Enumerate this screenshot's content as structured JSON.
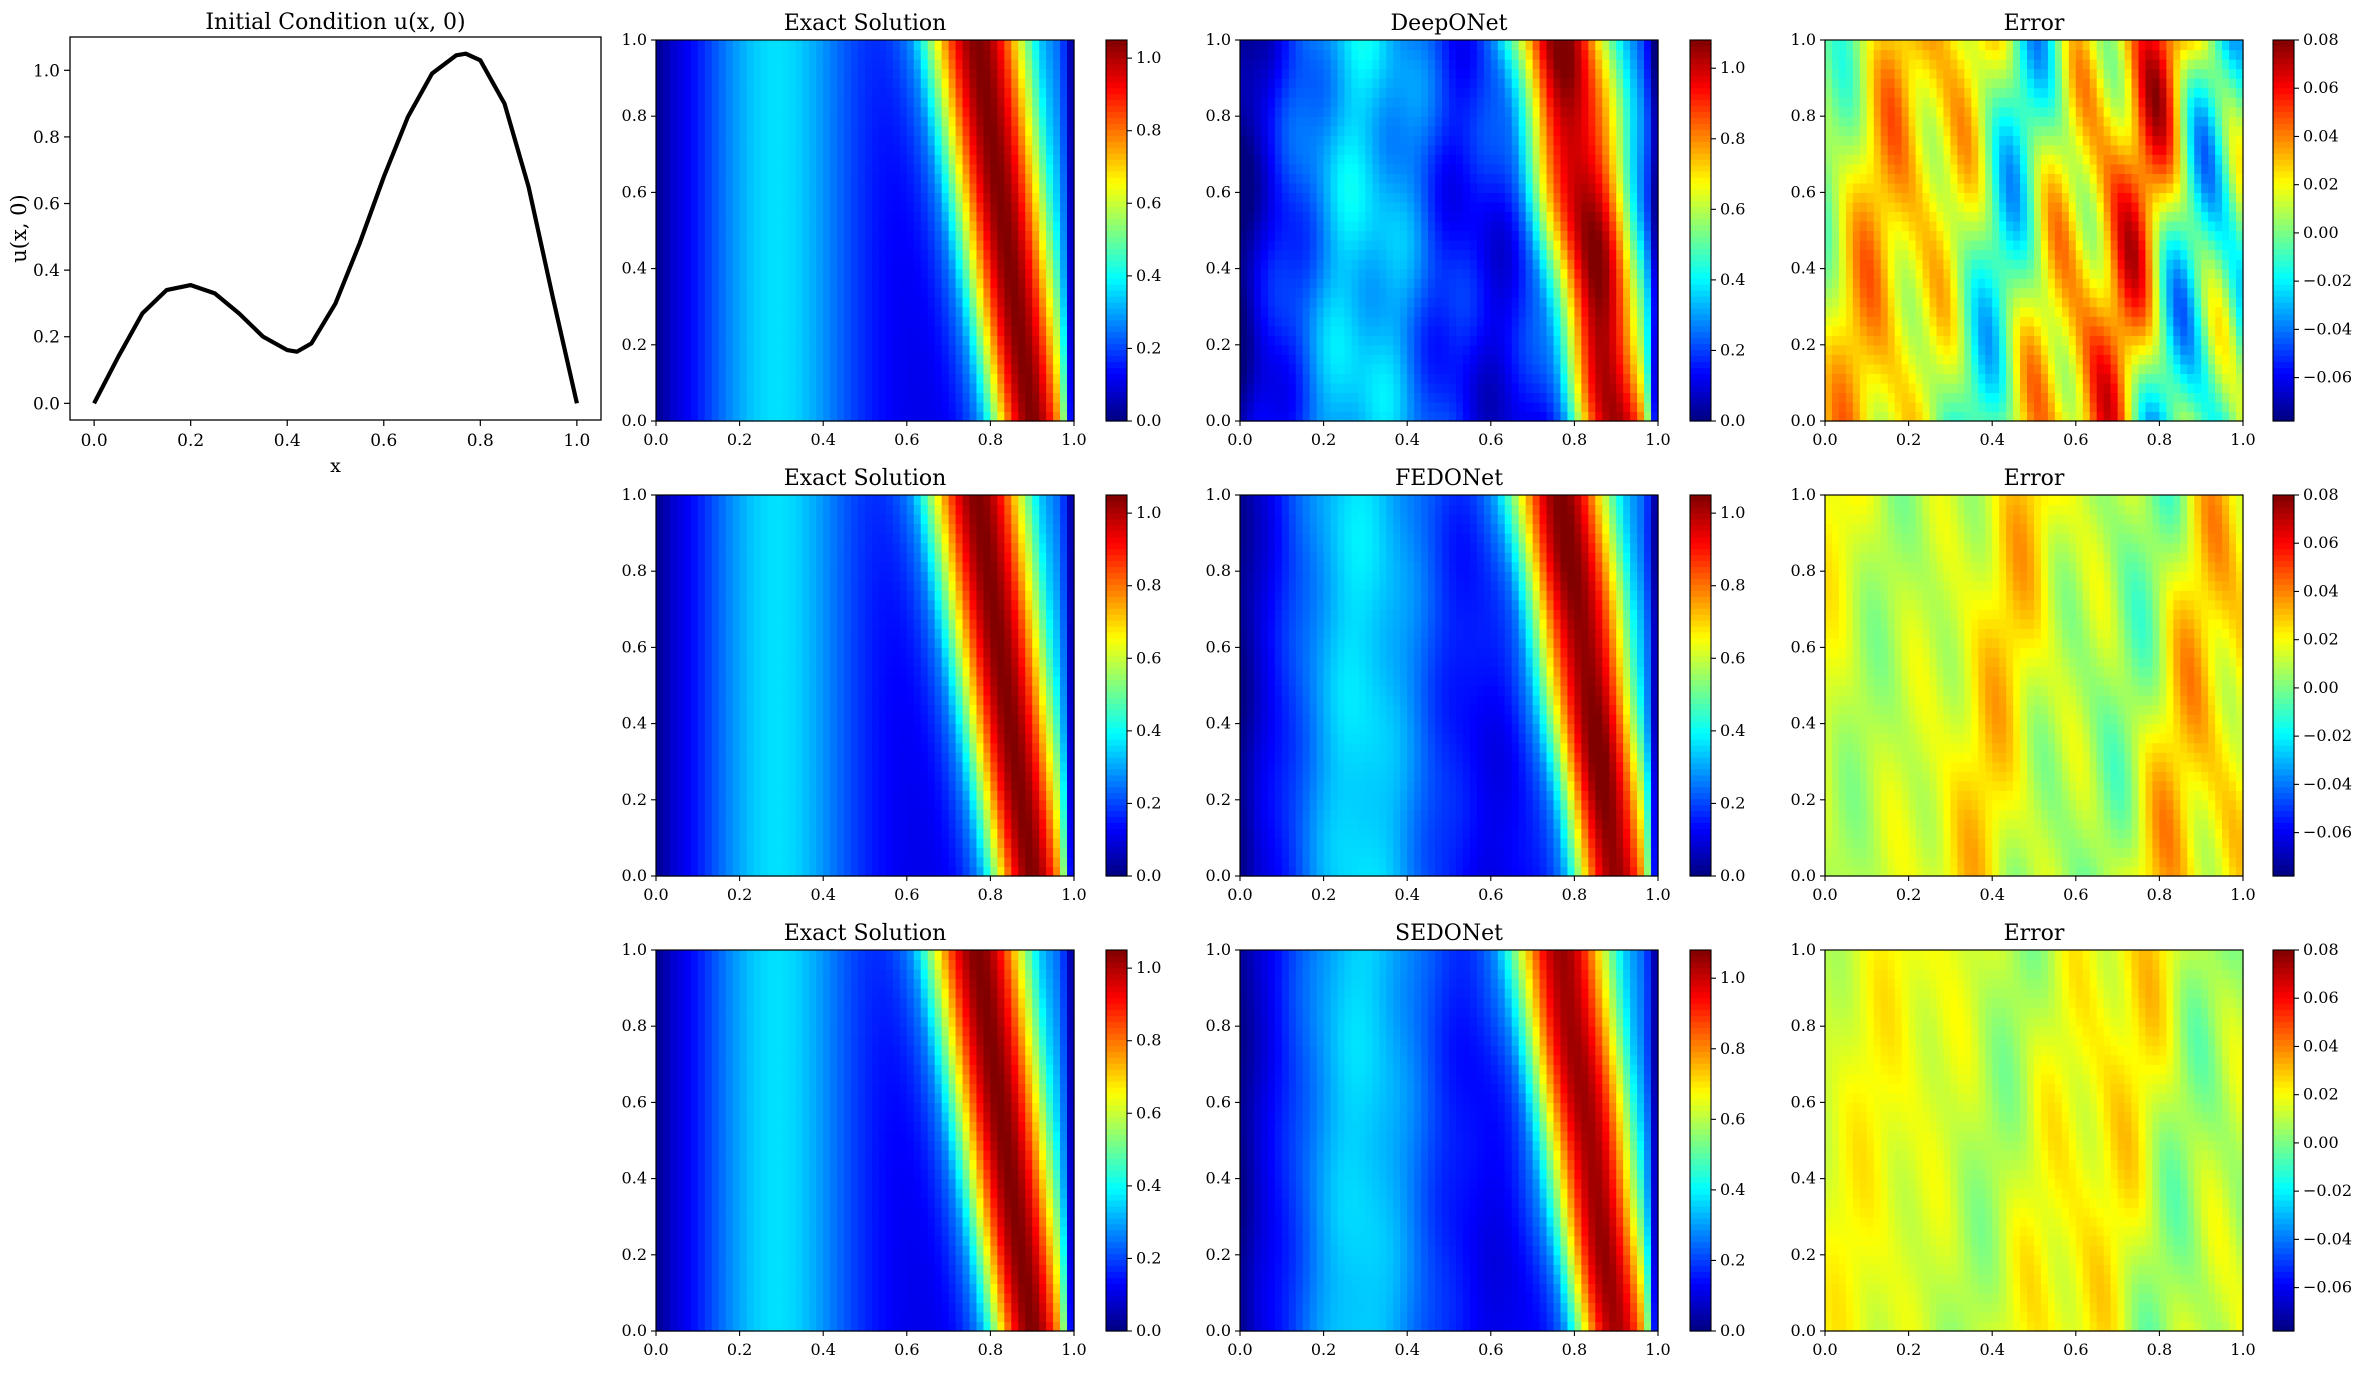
{
  "chart_data": [
    {
      "type": "line",
      "title": "Initial Condition u(x, 0)",
      "xlabel": "x",
      "ylabel": "u(x, 0)",
      "xlim": [
        -0.05,
        1.05
      ],
      "ylim": [
        -0.05,
        1.1
      ],
      "xticks": [
        "0.0",
        "0.2",
        "0.4",
        "0.6",
        "0.8",
        "1.0"
      ],
      "yticks": [
        "0.0",
        "0.2",
        "0.4",
        "0.6",
        "0.8",
        "1.0"
      ],
      "grid": false,
      "line_color": "#000000",
      "x": [
        0.0,
        0.05,
        0.1,
        0.15,
        0.2,
        0.25,
        0.3,
        0.35,
        0.4,
        0.42,
        0.45,
        0.5,
        0.55,
        0.6,
        0.65,
        0.7,
        0.75,
        0.77,
        0.8,
        0.85,
        0.9,
        0.95,
        1.0
      ],
      "y": [
        0.0,
        0.14,
        0.27,
        0.34,
        0.355,
        0.33,
        0.27,
        0.2,
        0.16,
        0.155,
        0.18,
        0.3,
        0.48,
        0.68,
        0.86,
        0.99,
        1.045,
        1.05,
        1.03,
        0.9,
        0.65,
        0.32,
        0.0
      ]
    },
    {
      "type": "heatmap",
      "grid_row": 1,
      "panels": [
        {
          "title": "Exact Solution",
          "kind": "solution",
          "colorbar_ticks": [
            "0.0",
            "0.2",
            "0.4",
            "0.6",
            "0.8",
            "1.0"
          ],
          "vmin": 0.0,
          "vmax": 1.05
        },
        {
          "title": "DeepONet",
          "kind": "solution",
          "noise": 0.06,
          "colorbar_ticks": [
            "0.0",
            "0.2",
            "0.4",
            "0.6",
            "0.8",
            "1.0"
          ],
          "vmin": 0.0,
          "vmax": 1.08
        },
        {
          "title": "Error",
          "kind": "error",
          "amplitude": 0.08,
          "colorbar_ticks": [
            "0.08",
            "0.06",
            "0.04",
            "0.02",
            "0.00",
            "−0.02",
            "−0.04",
            "−0.06"
          ],
          "vmin": -0.078,
          "vmax": 0.08
        }
      ]
    },
    {
      "type": "heatmap",
      "grid_row": 2,
      "panels": [
        {
          "title": "Exact Solution",
          "kind": "solution",
          "colorbar_ticks": [
            "0.0",
            "0.2",
            "0.4",
            "0.6",
            "0.8",
            "1.0"
          ],
          "vmin": 0.0,
          "vmax": 1.05
        },
        {
          "title": "FEDONet",
          "kind": "solution",
          "noise": 0.02,
          "colorbar_ticks": [
            "0.0",
            "0.2",
            "0.4",
            "0.6",
            "0.8",
            "1.0"
          ],
          "vmin": 0.0,
          "vmax": 1.05
        },
        {
          "title": "Error",
          "kind": "error",
          "amplitude": 0.035,
          "colorbar_ticks": [
            "0.08",
            "0.06",
            "0.04",
            "0.02",
            "0.00",
            "−0.02",
            "−0.04",
            "−0.06"
          ],
          "vmin": -0.078,
          "vmax": 0.08
        }
      ]
    },
    {
      "type": "heatmap",
      "grid_row": 3,
      "panels": [
        {
          "title": "Exact Solution",
          "kind": "solution",
          "colorbar_ticks": [
            "0.0",
            "0.2",
            "0.4",
            "0.6",
            "0.8",
            "1.0"
          ],
          "vmin": 0.0,
          "vmax": 1.05
        },
        {
          "title": "SEDONet",
          "kind": "solution",
          "noise": 0.015,
          "colorbar_ticks": [
            "0.0",
            "0.2",
            "0.4",
            "0.6",
            "0.8",
            "1.0"
          ],
          "vmin": 0.0,
          "vmax": 1.08
        },
        {
          "title": "Error",
          "kind": "error",
          "amplitude": 0.025,
          "colorbar_ticks": [
            "0.08",
            "0.06",
            "0.04",
            "0.02",
            "0.00",
            "−0.02",
            "−0.04",
            "−0.06"
          ],
          "vmin": -0.078,
          "vmax": 0.08
        }
      ]
    }
  ],
  "heatmap_axes": {
    "xticks": [
      "0.0",
      "0.2",
      "0.4",
      "0.6",
      "0.8",
      "1.0"
    ],
    "yticks": [
      "0.0",
      "0.2",
      "0.4",
      "0.6",
      "0.8",
      "1.0"
    ],
    "colormap": "jet"
  }
}
